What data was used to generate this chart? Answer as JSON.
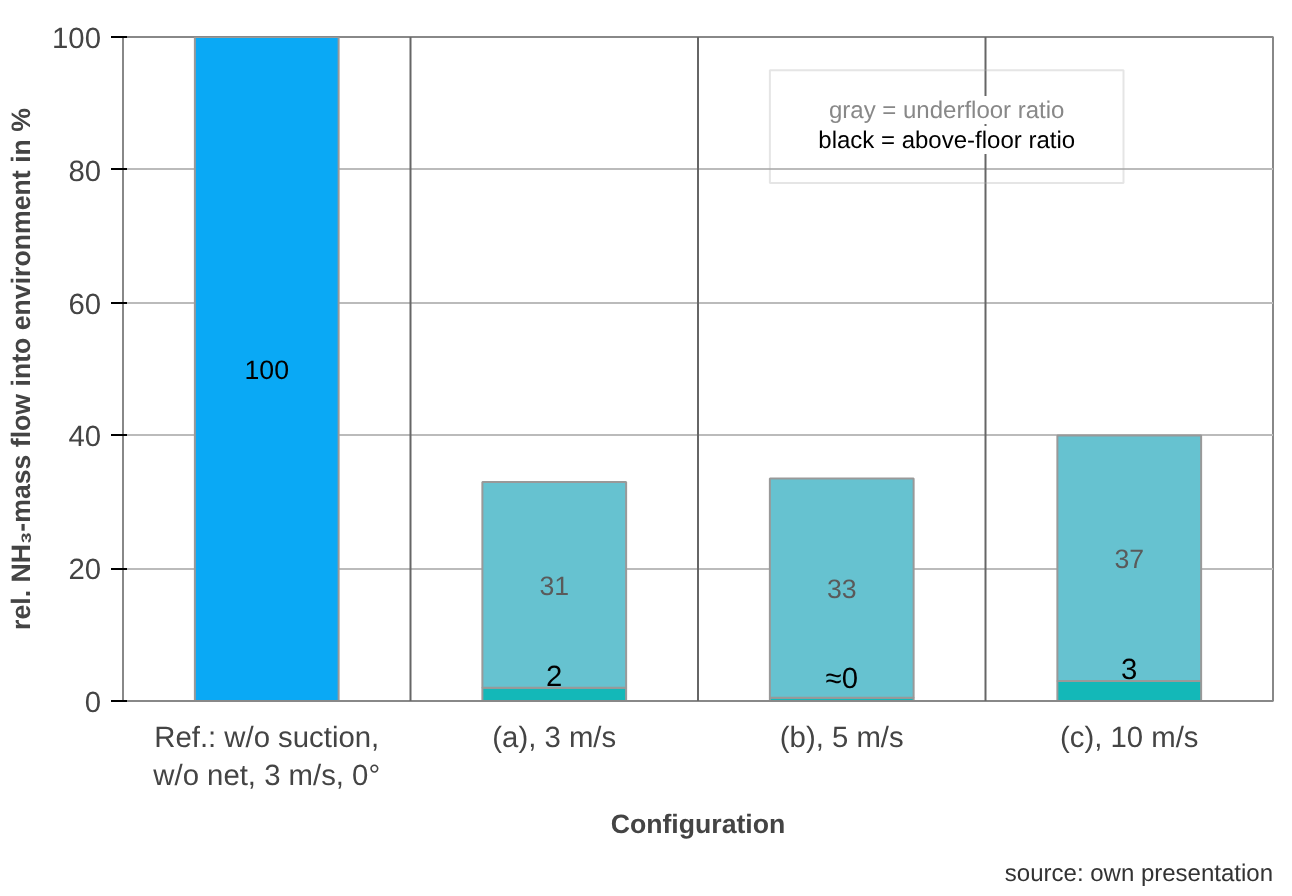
{
  "chart_data": {
    "type": "bar",
    "stacked": true,
    "categories": [
      "Ref.: w/o suction,\nw/o net, 3 m/s, 0°",
      "(a), 3 m/s",
      "(b), 5 m/s",
      "(c), 10 m/s"
    ],
    "series": [
      {
        "colors": [
          "#0aa9f5",
          "#13b8b8",
          "#13b8b8",
          "#13b8b8"
        ],
        "values": [
          100,
          2,
          0.5,
          3
        ],
        "value_labels": [
          "100",
          "2",
          "≈0",
          "3"
        ]
      },
      {
        "color": "#66c2d0",
        "values": [
          null,
          31,
          33,
          37
        ],
        "value_labels": [
          null,
          "31",
          "33",
          "37"
        ]
      }
    ],
    "xlabel": "Configuration",
    "ylabel": "rel. NH₃-mass flow into environment in %",
    "ylim": [
      0,
      100
    ],
    "yticks": [
      0,
      20,
      40,
      60,
      80,
      100
    ],
    "grid": true,
    "annotations": [
      "gray = underfloor ratio",
      "black = above-floor ratio",
      "source: own presentation"
    ]
  }
}
